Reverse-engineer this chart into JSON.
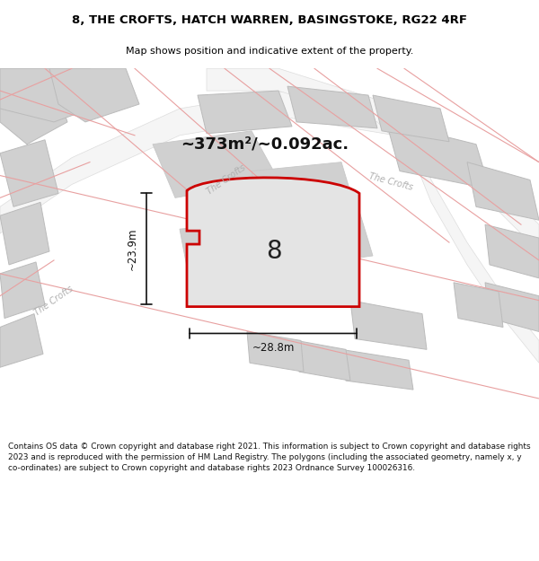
{
  "title_line1": "8, THE CROFTS, HATCH WARREN, BASINGSTOKE, RG22 4RF",
  "title_line2": "Map shows position and indicative extent of the property.",
  "area_text": "~373m²/~0.092ac.",
  "width_label": "~28.8m",
  "height_label": "~23.9m",
  "house_number": "8",
  "footer_text": "Contains OS data © Crown copyright and database right 2021. This information is subject to Crown copyright and database rights 2023 and is reproduced with the permission of HM Land Registry. The polygons (including the associated geometry, namely x, y co-ordinates) are subject to Crown copyright and database rights 2023 Ordnance Survey 100026316.",
  "bg_color": "#e8e8e8",
  "plot_fill": "#e0e0e0",
  "plot_edge": "#cc0000",
  "pink_line": "#e8a0a0",
  "gray_building": "#d0d0d0",
  "road_white": "#f5f5f5",
  "title_color": "#000000",
  "footer_color": "#111111"
}
